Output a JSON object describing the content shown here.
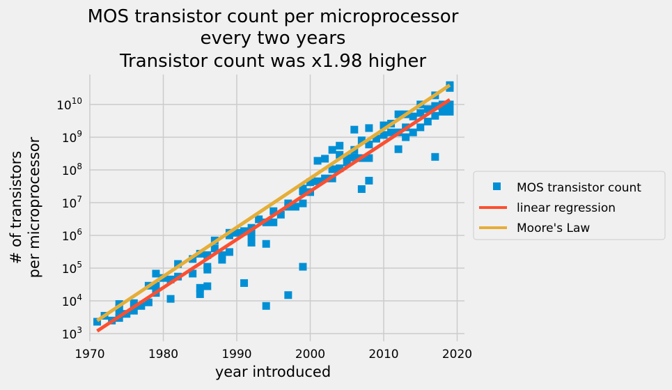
{
  "chart_data": {
    "type": "scatter",
    "title": [
      "MOS transistor count per microprocessor",
      "every two years",
      "Transistor count was x1.98 higher"
    ],
    "xlabel": "year introduced",
    "ylabel": [
      "# of transistors",
      "per microprocessor"
    ],
    "xlim": [
      1969.9,
      2021
    ],
    "ylim": [
      700,
      80000000000
    ],
    "yscale": "log",
    "grid": true,
    "legend_placement": "center-right outside",
    "x_ticks": [
      "1970",
      "1980",
      "1990",
      "2000",
      "2010",
      "2020"
    ],
    "x_tick_values": [
      1970,
      1980,
      1990,
      2000,
      2010,
      2020
    ],
    "y_tick_values": [
      1000,
      10000,
      100000,
      1000000,
      10000000,
      100000000,
      1000000000,
      10000000000
    ],
    "y_ticks": [
      {
        "base": "10",
        "exp": "3"
      },
      {
        "base": "10",
        "exp": "4"
      },
      {
        "base": "10",
        "exp": "5"
      },
      {
        "base": "10",
        "exp": "6"
      },
      {
        "base": "10",
        "exp": "7"
      },
      {
        "base": "10",
        "exp": "8"
      },
      {
        "base": "10",
        "exp": "9"
      },
      {
        "base": "10",
        "exp": "10"
      }
    ],
    "series": [
      {
        "name": "MOS transistor count",
        "kind": "markers",
        "color": "#008fd5",
        "points": [
          [
            1971,
            2300
          ],
          [
            1972,
            3500
          ],
          [
            1973,
            2500
          ],
          [
            1974,
            3000
          ],
          [
            1974,
            4500
          ],
          [
            1974,
            6000
          ],
          [
            1974,
            8000
          ],
          [
            1975,
            4000
          ],
          [
            1976,
            5000
          ],
          [
            1976,
            8500
          ],
          [
            1977,
            7000
          ],
          [
            1978,
            9000
          ],
          [
            1978,
            29000
          ],
          [
            1979,
            17500
          ],
          [
            1979,
            29000
          ],
          [
            1979,
            68000
          ],
          [
            1980,
            50000
          ],
          [
            1981,
            11500
          ],
          [
            1981,
            45000
          ],
          [
            1982,
            55000
          ],
          [
            1982,
            134000
          ],
          [
            1984,
            68000
          ],
          [
            1984,
            190000
          ],
          [
            1985,
            16000
          ],
          [
            1985,
            25000
          ],
          [
            1985,
            275000
          ],
          [
            1986,
            28000
          ],
          [
            1986,
            90000
          ],
          [
            1986,
            110000
          ],
          [
            1986,
            250000
          ],
          [
            1987,
            400000
          ],
          [
            1987,
            700000
          ],
          [
            1988,
            180000
          ],
          [
            1988,
            250000
          ],
          [
            1989,
            310000
          ],
          [
            1989,
            1000000
          ],
          [
            1989,
            1200000
          ],
          [
            1990,
            1200000
          ],
          [
            1991,
            35000
          ],
          [
            1991,
            1350000
          ],
          [
            1992,
            600000
          ],
          [
            1992,
            1000000
          ],
          [
            1992,
            1700000
          ],
          [
            1993,
            3100000
          ],
          [
            1994,
            7000
          ],
          [
            1994,
            550000
          ],
          [
            1994,
            2500000
          ],
          [
            1995,
            2500000
          ],
          [
            1995,
            5500000
          ],
          [
            1996,
            4300000
          ],
          [
            1997,
            15000
          ],
          [
            1997,
            7500000
          ],
          [
            1997,
            9500000
          ],
          [
            1998,
            7500000
          ],
          [
            1999,
            110000
          ],
          [
            1999,
            9500000
          ],
          [
            1999,
            22000000
          ],
          [
            1999,
            27000000
          ],
          [
            2000,
            21000000
          ],
          [
            2000,
            42000000
          ],
          [
            2001,
            45000000
          ],
          [
            2001,
            190000000
          ],
          [
            2002,
            55000000
          ],
          [
            2002,
            220000000
          ],
          [
            2003,
            55000000
          ],
          [
            2003,
            105000000
          ],
          [
            2003,
            410000000
          ],
          [
            2004,
            112000000
          ],
          [
            2004,
            290000000
          ],
          [
            2004,
            550000000
          ],
          [
            2005,
            169000000
          ],
          [
            2005,
            230000000
          ],
          [
            2006,
            240000000
          ],
          [
            2006,
            410000000
          ],
          [
            2006,
            1700000000
          ],
          [
            2007,
            26000000
          ],
          [
            2007,
            230000000
          ],
          [
            2007,
            800000000
          ],
          [
            2008,
            47000000
          ],
          [
            2008,
            230000000
          ],
          [
            2008,
            600000000
          ],
          [
            2008,
            1900000000
          ],
          [
            2009,
            900000000
          ],
          [
            2010,
            1170000000
          ],
          [
            2010,
            2300000000
          ],
          [
            2011,
            1400000000
          ],
          [
            2011,
            2600000000
          ],
          [
            2012,
            430000000
          ],
          [
            2012,
            1400000000
          ],
          [
            2012,
            5000000000
          ],
          [
            2013,
            1000000000
          ],
          [
            2013,
            2000000000
          ],
          [
            2013,
            5000000000
          ],
          [
            2014,
            1400000000
          ],
          [
            2014,
            4300000000
          ],
          [
            2015,
            2000000000
          ],
          [
            2015,
            5500000000
          ],
          [
            2015,
            10000000000
          ],
          [
            2016,
            3000000000
          ],
          [
            2016,
            7200000000
          ],
          [
            2017,
            250000000
          ],
          [
            2017,
            4500000000
          ],
          [
            2017,
            9000000000
          ],
          [
            2017,
            19000000000
          ],
          [
            2018,
            6000000000
          ],
          [
            2018,
            10000000000
          ],
          [
            2019,
            6000000000
          ],
          [
            2019,
            10000000000
          ],
          [
            2019,
            32000000000
          ],
          [
            2019,
            39000000000
          ]
        ]
      },
      {
        "name": "linear regression",
        "kind": "line",
        "color": "#fc4f30",
        "points": [
          [
            1971,
            1200
          ],
          [
            2019,
            14000000000
          ]
        ]
      },
      {
        "name": "Moore's Law",
        "kind": "line",
        "color": "#e5ae38",
        "points": [
          [
            1971,
            2500
          ],
          [
            2019,
            39000000000
          ]
        ]
      }
    ]
  }
}
